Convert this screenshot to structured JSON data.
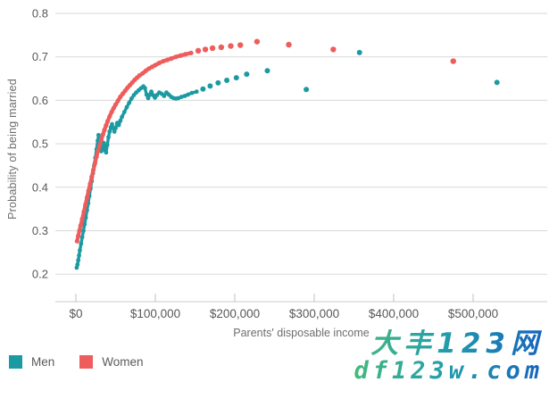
{
  "chart_data": {
    "type": "scatter",
    "title": "",
    "xlabel": "Parents' disposable income",
    "ylabel": "Probability of being married",
    "grid": true,
    "legend_position": "bottom-left",
    "axes": {
      "x": {
        "tick_values": [
          0,
          100000,
          200000,
          300000,
          400000,
          500000
        ],
        "tick_labels": [
          "$0",
          "$100,000",
          "$200,000",
          "$300,000",
          "$400,000",
          "$500,000"
        ],
        "lim": [
          0,
          550000
        ]
      },
      "y": {
        "tick_values": [
          0.2,
          0.3,
          0.4,
          0.5,
          0.6,
          0.7,
          0.8
        ],
        "tick_labels": [
          "0.2",
          "0.3",
          "0.4",
          "0.5",
          "0.6",
          "0.7",
          "0.8"
        ],
        "lim": [
          0.2,
          0.8
        ]
      }
    },
    "series": [
      {
        "name": "Men",
        "color": "#1b9aa1",
        "dense_until": 152000,
        "points": [
          [
            1000,
            0.215
          ],
          [
            2000,
            0.222
          ],
          [
            3000,
            0.232
          ],
          [
            4000,
            0.243
          ],
          [
            5000,
            0.255
          ],
          [
            6500,
            0.27
          ],
          [
            8000,
            0.285
          ],
          [
            9500,
            0.3
          ],
          [
            11000,
            0.315
          ],
          [
            12500,
            0.33
          ],
          [
            14000,
            0.347
          ],
          [
            15500,
            0.363
          ],
          [
            17000,
            0.38
          ],
          [
            18500,
            0.397
          ],
          [
            20000,
            0.414
          ],
          [
            21500,
            0.432
          ],
          [
            23000,
            0.45
          ],
          [
            24500,
            0.468
          ],
          [
            26000,
            0.487
          ],
          [
            27500,
            0.507
          ],
          [
            28500,
            0.52
          ],
          [
            29500,
            0.505
          ],
          [
            30500,
            0.49
          ],
          [
            32000,
            0.483
          ],
          [
            33500,
            0.492
          ],
          [
            35000,
            0.502
          ],
          [
            36500,
            0.486
          ],
          [
            38000,
            0.48
          ],
          [
            39500,
            0.497
          ],
          [
            41000,
            0.515
          ],
          [
            42500,
            0.528
          ],
          [
            44000,
            0.538
          ],
          [
            45500,
            0.545
          ],
          [
            47000,
            0.536
          ],
          [
            48500,
            0.528
          ],
          [
            50000,
            0.536
          ],
          [
            52000,
            0.548
          ],
          [
            54000,
            0.543
          ],
          [
            56000,
            0.553
          ],
          [
            58000,
            0.562
          ],
          [
            61000,
            0.573
          ],
          [
            64000,
            0.584
          ],
          [
            67000,
            0.594
          ],
          [
            70000,
            0.604
          ],
          [
            73000,
            0.612
          ],
          [
            76000,
            0.618
          ],
          [
            79000,
            0.623
          ],
          [
            82000,
            0.628
          ],
          [
            85000,
            0.632
          ],
          [
            87000,
            0.628
          ],
          [
            89000,
            0.613
          ],
          [
            91000,
            0.605
          ],
          [
            93000,
            0.613
          ],
          [
            95000,
            0.62
          ],
          [
            97000,
            0.612
          ],
          [
            99500,
            0.606
          ],
          [
            102000,
            0.612
          ],
          [
            105000,
            0.618
          ],
          [
            108000,
            0.615
          ],
          [
            111000,
            0.61
          ],
          [
            114000,
            0.618
          ],
          [
            117000,
            0.613
          ],
          [
            120000,
            0.608
          ],
          [
            123000,
            0.605
          ],
          [
            126000,
            0.604
          ],
          [
            129000,
            0.605
          ],
          [
            133000,
            0.608
          ],
          [
            137000,
            0.61
          ],
          [
            141000,
            0.613
          ],
          [
            146000,
            0.617
          ],
          [
            152000,
            0.62
          ],
          [
            160000,
            0.626
          ],
          [
            169000,
            0.633
          ],
          [
            179000,
            0.64
          ],
          [
            190000,
            0.646
          ],
          [
            202000,
            0.652
          ],
          [
            215000,
            0.66
          ],
          [
            241000,
            0.668
          ],
          [
            290000,
            0.625
          ],
          [
            357000,
            0.71
          ],
          [
            530000,
            0.641
          ]
        ]
      },
      {
        "name": "Women",
        "color": "#ee5c5c",
        "dense_until": 145000,
        "points": [
          [
            1500,
            0.276
          ],
          [
            3000,
            0.288
          ],
          [
            4500,
            0.3
          ],
          [
            6000,
            0.312
          ],
          [
            8000,
            0.327
          ],
          [
            10000,
            0.343
          ],
          [
            12000,
            0.36
          ],
          [
            14000,
            0.376
          ],
          [
            16000,
            0.392
          ],
          [
            18000,
            0.408
          ],
          [
            20000,
            0.424
          ],
          [
            22000,
            0.44
          ],
          [
            24000,
            0.455
          ],
          [
            26000,
            0.47
          ],
          [
            28000,
            0.484
          ],
          [
            30000,
            0.497
          ],
          [
            32000,
            0.51
          ],
          [
            34000,
            0.521
          ],
          [
            36000,
            0.532
          ],
          [
            38000,
            0.542
          ],
          [
            40000,
            0.552
          ],
          [
            42500,
            0.563
          ],
          [
            45000,
            0.573
          ],
          [
            47500,
            0.582
          ],
          [
            50000,
            0.59
          ],
          [
            53000,
            0.599
          ],
          [
            56000,
            0.608
          ],
          [
            59000,
            0.615
          ],
          [
            62000,
            0.622
          ],
          [
            65000,
            0.629
          ],
          [
            68000,
            0.635
          ],
          [
            71000,
            0.641
          ],
          [
            74000,
            0.647
          ],
          [
            77000,
            0.652
          ],
          [
            80000,
            0.657
          ],
          [
            84000,
            0.662
          ],
          [
            88000,
            0.668
          ],
          [
            92000,
            0.673
          ],
          [
            96000,
            0.677
          ],
          [
            100000,
            0.681
          ],
          [
            105000,
            0.686
          ],
          [
            110000,
            0.69
          ],
          [
            115000,
            0.693
          ],
          [
            120000,
            0.696
          ],
          [
            126000,
            0.7
          ],
          [
            132000,
            0.703
          ],
          [
            138000,
            0.706
          ],
          [
            145000,
            0.709
          ],
          [
            154000,
            0.714
          ],
          [
            163000,
            0.717
          ],
          [
            172000,
            0.72
          ],
          [
            183000,
            0.722
          ],
          [
            195000,
            0.725
          ],
          [
            207000,
            0.727
          ],
          [
            228000,
            0.735
          ],
          [
            268000,
            0.728
          ],
          [
            324000,
            0.717
          ],
          [
            475000,
            0.69
          ]
        ]
      }
    ],
    "style": {
      "grid_color": "#d9d9d9",
      "axis_line_color": "#c8c8c8",
      "tick_color": "#c0c0c0",
      "tick_label_color": "#58585a"
    }
  },
  "watermark": {
    "line1": "大丰123网",
    "line2": "df123w.com",
    "color_start": "#45b97c",
    "color_end": "#1464c0"
  }
}
